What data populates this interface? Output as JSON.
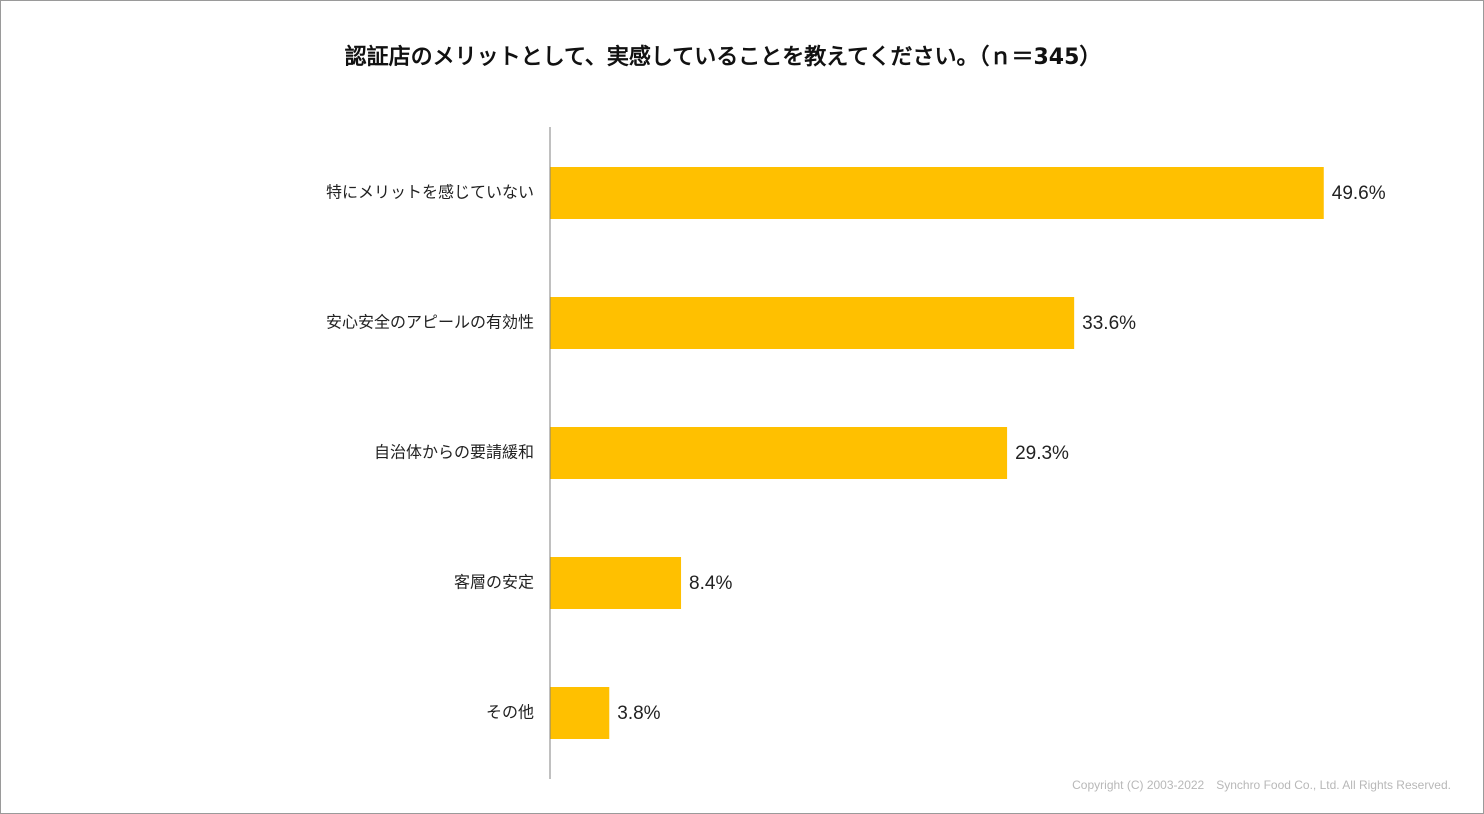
{
  "chart_data": {
    "type": "bar",
    "orientation": "horizontal",
    "title": "認証店のメリットとして、実感していることを教えてください。（ｎ＝345）",
    "categories": [
      "特にメリットを感じていない",
      "安心安全のアピールの有効性",
      "自治体からの要請緩和",
      "客層の安定",
      "その他"
    ],
    "values": [
      49.6,
      33.6,
      29.3,
      8.4,
      3.8
    ],
    "value_labels": [
      "49.6%",
      "33.6%",
      "29.3%",
      "8.4%",
      "3.8%"
    ],
    "unit": "%",
    "xlim": [
      0,
      50
    ],
    "xlabel": "",
    "ylabel": "",
    "grid": false,
    "legend": "none",
    "bar_color": "#FFC000",
    "axis_color": "#808080"
  },
  "footer": {
    "copyright": "Copyright (C) 2003-2022　Synchro Food Co., Ltd. All Rights Reserved."
  }
}
